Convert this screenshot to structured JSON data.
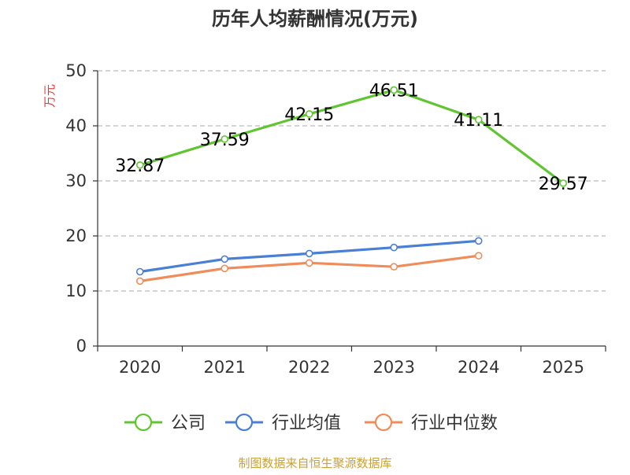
{
  "chart_data": {
    "type": "line",
    "title": "历年人均薪酬情况(万元)",
    "ylabel": "万元",
    "xlabel": "",
    "categories": [
      "2020",
      "2021",
      "2022",
      "2023",
      "2024",
      "2025"
    ],
    "yticks": [
      "0",
      "10",
      "20",
      "30",
      "40",
      "50"
    ],
    "ylim": [
      0,
      50
    ],
    "grid": true,
    "legend_position": "bottom",
    "series": [
      {
        "name": "公司",
        "color": "#5fc530",
        "values": [
          32.87,
          37.59,
          42.15,
          46.51,
          41.11,
          29.57
        ],
        "labels": [
          "32.87",
          "37.59",
          "42.15",
          "46.51",
          "41.11",
          "29.57"
        ]
      },
      {
        "name": "行业均值",
        "color": "#4a7fd6",
        "values": [
          13.5,
          15.8,
          16.8,
          17.9,
          19.1,
          null
        ]
      },
      {
        "name": "行业中位数",
        "color": "#f08c5a",
        "values": [
          11.8,
          14.1,
          15.1,
          14.4,
          16.4,
          null
        ]
      }
    ]
  },
  "source": "制图数据来自恒生聚源数据库",
  "colors": {
    "title": "#333333",
    "axis": "#333333",
    "grid": "#bbbbbb",
    "ylabel": "#e03c3c",
    "source": "#c9a13a"
  }
}
